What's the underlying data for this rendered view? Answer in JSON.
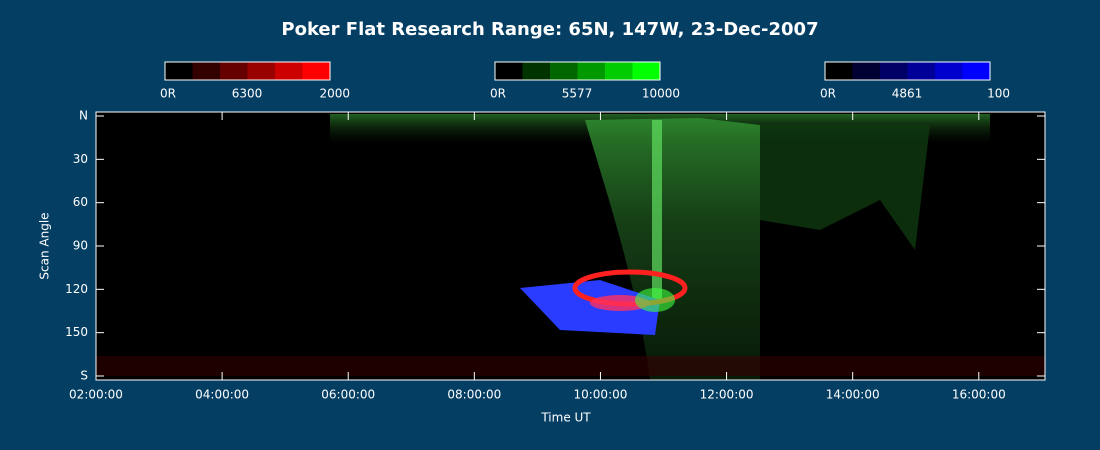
{
  "chart_data": {
    "type": "keogram",
    "title": "Poker Flat Research Range: 65N, 147W, 23-Dec-2007",
    "x_label": "Time UT",
    "y_label": "Scan Angle",
    "xlim": [
      2,
      17.05
    ],
    "xticks": [
      {
        "value": 2,
        "label": "02:00:00"
      },
      {
        "value": 4,
        "label": "04:00:00"
      },
      {
        "value": 6,
        "label": "06:00:00"
      },
      {
        "value": 8,
        "label": "08:00:00"
      },
      {
        "value": 10,
        "label": "10:00:00"
      },
      {
        "value": 12,
        "label": "12:00:00"
      },
      {
        "value": 14,
        "label": "14:00:00"
      },
      {
        "value": 16,
        "label": "16:00:00"
      }
    ],
    "ylim": [
      0,
      180
    ],
    "yticks": [
      {
        "value": 0,
        "label": "N"
      },
      30,
      60,
      90,
      120,
      150,
      {
        "value": 180,
        "label": "S"
      }
    ],
    "colorbars": [
      {
        "name": "6300",
        "min_label": "0R",
        "max": 2000,
        "color": "#ff0000"
      },
      {
        "name": "5577",
        "min_label": "0R",
        "max": 10000,
        "color": "#00ff00"
      },
      {
        "name": "4861",
        "min_label": "0R",
        "max": 100,
        "color": "#0000ff"
      }
    ]
  }
}
